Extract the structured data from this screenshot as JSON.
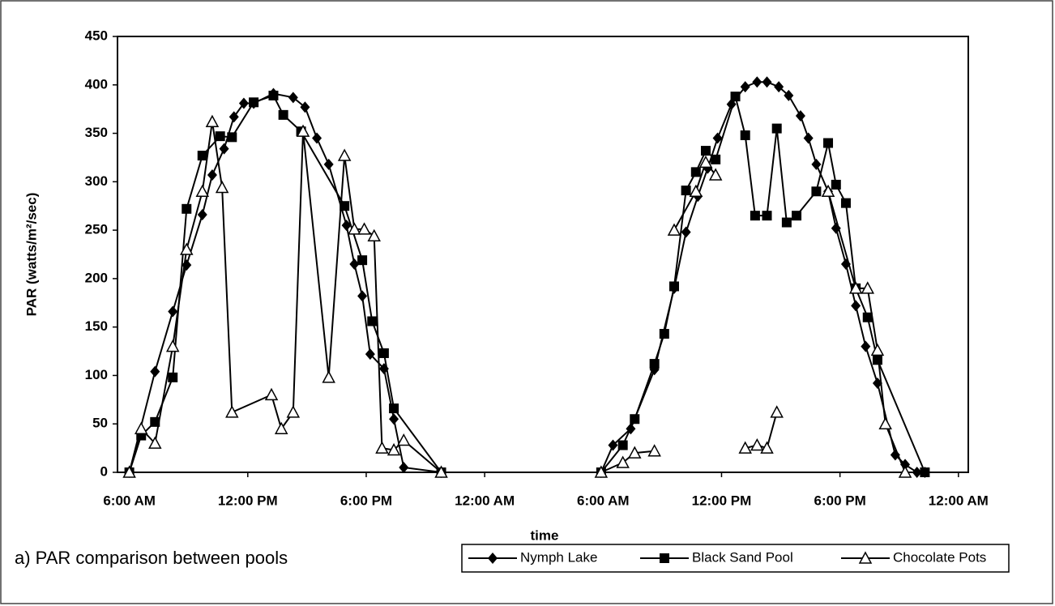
{
  "chart_data": {
    "type": "line",
    "xlabel": "time",
    "ylabel": "PAR (watts/m²/sec)",
    "caption": "a) PAR comparison between pools",
    "xlim": [
      5.4,
      48.5
    ],
    "xticks": [
      {
        "value": 6,
        "label": "6:00 AM"
      },
      {
        "value": 12,
        "label": "12:00 PM"
      },
      {
        "value": 18,
        "label": "6:00 PM"
      },
      {
        "value": 24,
        "label": "12:00 AM"
      },
      {
        "value": 30,
        "label": "6:00 AM"
      },
      {
        "value": 36,
        "label": "12:00 PM"
      },
      {
        "value": 42,
        "label": "6:00 PM"
      },
      {
        "value": 48,
        "label": "12:00 AM"
      }
    ],
    "ylim": [
      0,
      450
    ],
    "yticks": [
      0,
      50,
      100,
      150,
      200,
      250,
      300,
      350,
      400,
      450
    ],
    "series": [
      {
        "name": "Nymph Lake",
        "color": "#000000",
        "marker": "diamond",
        "x": [
          6.0,
          7.3,
          8.2,
          8.9,
          9.7,
          10.2,
          10.8,
          11.3,
          11.8,
          12.3,
          13.3,
          14.3,
          14.9,
          15.5,
          16.1,
          17.0,
          17.4,
          17.8,
          18.2,
          18.9,
          19.4,
          19.9,
          21.8,
          null,
          29.9,
          30.5,
          31.4,
          32.6,
          33.6,
          34.2,
          34.8,
          35.3,
          35.8,
          36.5,
          37.2,
          37.8,
          38.3,
          38.9,
          39.4,
          40.0,
          40.4,
          40.8,
          41.4,
          41.8,
          42.3,
          42.8,
          43.3,
          43.9,
          44.8,
          45.3,
          45.9,
          46.3
        ],
        "values": [
          0,
          104,
          166,
          214,
          266,
          307,
          334,
          367,
          381,
          381,
          391,
          387,
          377,
          345,
          318,
          255,
          215,
          182,
          122,
          107,
          55,
          5,
          0,
          null,
          0,
          28,
          45,
          106,
          190,
          248,
          285,
          314,
          345,
          380,
          398,
          403,
          403,
          398,
          389,
          368,
          345,
          318,
          290,
          252,
          215,
          172,
          130,
          92,
          18,
          8,
          0,
          0
        ]
      },
      {
        "name": "Black Sand Pool",
        "color": "#000000",
        "marker": "square",
        "x": [
          6.0,
          6.6,
          7.3,
          8.2,
          8.9,
          9.7,
          10.6,
          11.2,
          12.3,
          13.3,
          13.8,
          14.7,
          16.9,
          17.8,
          18.3,
          18.9,
          19.4,
          21.8,
          null,
          29.9,
          31.0,
          31.6,
          32.6,
          33.1,
          33.6,
          34.2,
          34.7,
          35.2,
          35.7,
          36.7,
          37.2,
          37.7,
          38.3,
          38.8,
          39.3,
          39.8,
          40.8,
          41.4,
          41.8,
          42.3,
          42.8,
          43.4,
          43.9,
          46.3
        ],
        "values": [
          0,
          38,
          52,
          98,
          272,
          327,
          347,
          346,
          382,
          389,
          369,
          352,
          275,
          219,
          156,
          123,
          66,
          0,
          null,
          0,
          28,
          55,
          112,
          143,
          192,
          291,
          310,
          332,
          323,
          388,
          348,
          265,
          265,
          355,
          258,
          265,
          290,
          340,
          297,
          278,
          190,
          160,
          116,
          0
        ]
      },
      {
        "name": "Chocolate Pots",
        "color": "#000000",
        "marker": "triangle",
        "x": [
          6.0,
          6.6,
          7.3,
          8.2,
          8.9,
          9.7,
          10.2,
          10.7,
          11.2,
          13.2,
          13.7,
          14.3,
          14.8,
          16.1,
          16.9,
          17.4,
          17.9,
          18.4,
          18.8,
          19.4,
          19.9,
          21.8,
          null,
          29.9,
          31.0,
          31.6,
          32.6,
          null,
          33.6,
          34.7,
          35.2,
          35.7,
          null,
          37.2,
          37.8,
          38.3,
          38.8,
          null,
          41.4,
          42.8,
          43.4,
          43.9,
          44.3,
          45.3
        ],
        "values": [
          0,
          45,
          30,
          130,
          230,
          290,
          362,
          294,
          62,
          80,
          45,
          62,
          352,
          98,
          327,
          251,
          251,
          244,
          25,
          23,
          33,
          0,
          null,
          0,
          10,
          20,
          22,
          null,
          250,
          290,
          320,
          307,
          null,
          25,
          28,
          25,
          62,
          null,
          290,
          190,
          190,
          126,
          50,
          0
        ]
      }
    ]
  }
}
